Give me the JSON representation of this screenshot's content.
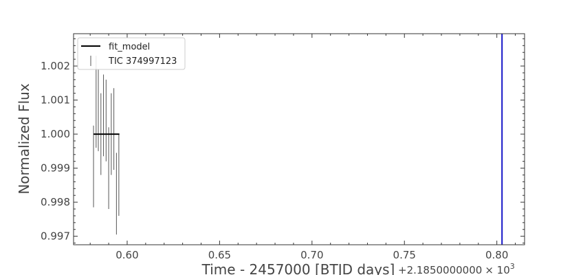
{
  "chart_data": {
    "type": "scatter",
    "xlabel": "Time - 2457000 [BTJD days]",
    "ylabel": "Normalized Flux",
    "x_offset_text": "+2.1850000000",
    "x_offset_mult": "× 10",
    "x_offset_exp": "3",
    "xlim": [
      0.571,
      0.815
    ],
    "ylim": [
      0.99675,
      1.00295
    ],
    "x_ticks": [
      {
        "value": 0.6,
        "label": "0.60"
      },
      {
        "value": 0.65,
        "label": "0.65"
      },
      {
        "value": 0.7,
        "label": "0.70"
      },
      {
        "value": 0.75,
        "label": "0.75"
      },
      {
        "value": 0.8,
        "label": "0.80"
      }
    ],
    "y_ticks": [
      {
        "value": 0.997,
        "label": "0.997"
      },
      {
        "value": 0.998,
        "label": "0.998"
      },
      {
        "value": 0.999,
        "label": "0.999"
      },
      {
        "value": 1.0,
        "label": "1.000"
      },
      {
        "value": 1.001,
        "label": "1.001"
      },
      {
        "value": 1.002,
        "label": "1.002"
      }
    ],
    "legend": {
      "position": "top-left",
      "entries": [
        {
          "label": "fit_model",
          "style": "line"
        },
        {
          "label": "TIC 374997123",
          "style": "errorbar"
        }
      ]
    },
    "series": [
      {
        "name": "fit_model",
        "type": "line",
        "color": "#000000",
        "x": [
          0.5818,
          0.5958
        ],
        "y": [
          1.0,
          1.0
        ]
      },
      {
        "name": "TIC 374997123",
        "type": "errorbar",
        "color": "#555555",
        "points": [
          {
            "x": 0.5818,
            "ymin": 0.99785,
            "ymax": 1.00025
          },
          {
            "x": 0.5832,
            "ymin": 0.9996,
            "ymax": 1.0023
          },
          {
            "x": 0.5844,
            "ymin": 0.9995,
            "ymax": 1.0019
          },
          {
            "x": 0.5858,
            "ymin": 0.9988,
            "ymax": 1.0012
          },
          {
            "x": 0.5872,
            "ymin": 0.99935,
            "ymax": 1.00175
          },
          {
            "x": 0.5886,
            "ymin": 0.9992,
            "ymax": 1.0016
          },
          {
            "x": 0.59,
            "ymin": 0.9978,
            "ymax": 1.0002
          },
          {
            "x": 0.5914,
            "ymin": 0.9988,
            "ymax": 1.0012
          },
          {
            "x": 0.5928,
            "ymin": 0.99895,
            "ymax": 1.00135
          },
          {
            "x": 0.5942,
            "ymin": 0.99705,
            "ymax": 0.99945
          },
          {
            "x": 0.5955,
            "ymin": 0.9976,
            "ymax": 1.0
          }
        ]
      }
    ],
    "vline": {
      "x": 0.8028,
      "color": "#1515c8"
    },
    "grid": false
  }
}
